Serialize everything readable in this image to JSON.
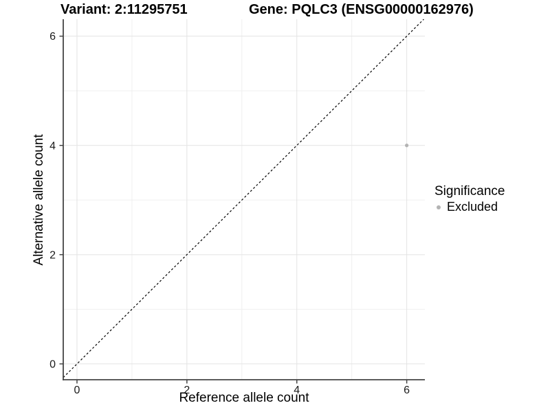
{
  "header": {
    "variant_title": "Variant: 2:11295751",
    "gene_title": "Gene: PQLC3 (ENSG00000162976)"
  },
  "chart_data": {
    "type": "scatter",
    "title_left": "Variant: 2:11295751",
    "title_right": "Gene: PQLC3 (ENSG00000162976)",
    "xlabel": "Reference allele count",
    "ylabel": "Alternative allele count",
    "xlim": [
      -0.25,
      6.33
    ],
    "ylim": [
      -0.29,
      6.31
    ],
    "x_major_ticks": [
      0,
      2,
      4,
      6
    ],
    "y_major_ticks": [
      0,
      2,
      4,
      6
    ],
    "x_minor_ticks": [
      1,
      3,
      5
    ],
    "y_minor_ticks": [
      1,
      3,
      5
    ],
    "grid": true,
    "points": [
      {
        "x": 6,
        "y": 4,
        "series": "Excluded"
      }
    ],
    "reference_line": {
      "equation": "y = x",
      "style": "dashed",
      "color": "#000000"
    },
    "legend": {
      "title": "Significance",
      "position": "right",
      "items": [
        {
          "label": "Excluded",
          "color": "#b3b3b3"
        }
      ]
    },
    "colors": {
      "point": "#b3b3b3",
      "grid_major": "#e3e3e3",
      "grid_minor": "#efefef",
      "axis_line": "#444444",
      "tick_label": "#1a1a1a",
      "background": "#ffffff"
    }
  }
}
